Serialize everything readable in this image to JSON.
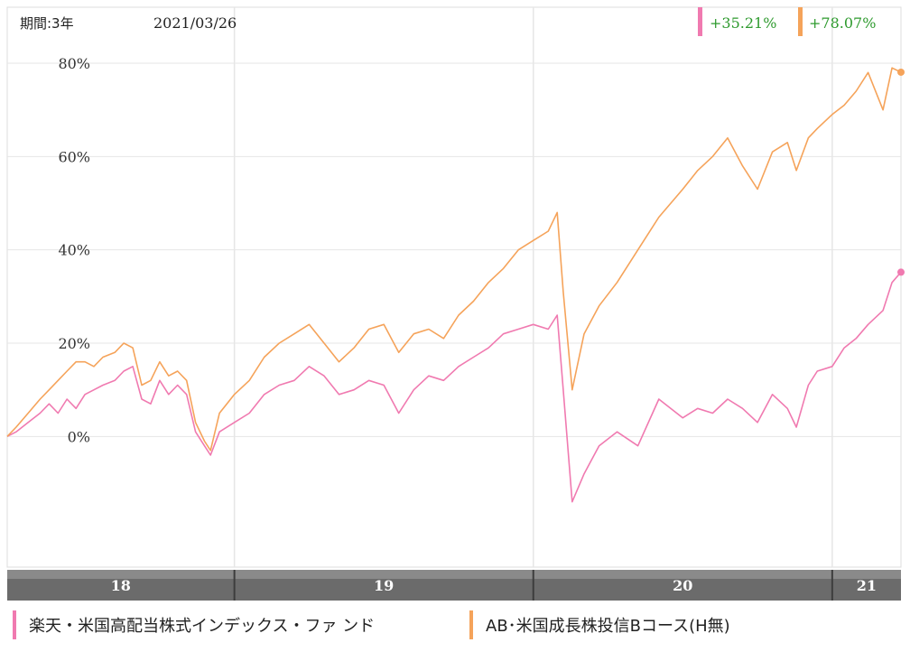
{
  "header": {
    "period_label": "期間:3年",
    "date_label": "2021/03/26"
  },
  "badges": [
    {
      "text": "+35.21%",
      "color": "#f07ab0"
    },
    {
      "text": "+78.07%",
      "color": "#f5a35a"
    }
  ],
  "legend": [
    {
      "label": "楽天・米国高配当株式インデックス・ファ ンド",
      "color": "#f07ab0"
    },
    {
      "label": "AB･米国成長株投信Bコース(H無)",
      "color": "#f5a35a"
    }
  ],
  "colors": {
    "badge_text": "#2e9a2e",
    "axis_band": "#6b6b6b",
    "grid": "#e6e6e6"
  },
  "chart_data": {
    "type": "line",
    "x_range": [
      2018.24,
      2021.23
    ],
    "ylim": [
      -28,
      92
    ],
    "y_ticks": [
      {
        "value": 0,
        "label": "0%"
      },
      {
        "value": 20,
        "label": "20%"
      },
      {
        "value": 40,
        "label": "40%"
      },
      {
        "value": 60,
        "label": "60%"
      },
      {
        "value": 80,
        "label": "80%"
      }
    ],
    "x_ticks": [
      {
        "value": 2018.24,
        "label": ""
      },
      {
        "value": 2019.0,
        "label": "18"
      },
      {
        "value": 2020.0,
        "label": "19"
      },
      {
        "value": 2021.0,
        "label": "20"
      },
      {
        "value": 2021.23,
        "label": "21"
      }
    ],
    "x_labels": [
      {
        "from": 2018.24,
        "to": 2019.0,
        "label": "18"
      },
      {
        "from": 2019.0,
        "to": 2020.0,
        "label": "19"
      },
      {
        "from": 2020.0,
        "to": 2021.0,
        "label": "20"
      },
      {
        "from": 2021.0,
        "to": 2021.23,
        "label": "21"
      }
    ],
    "series": [
      {
        "name": "楽天・米国高配当株式インデックス・ファ ンド",
        "color": "#f07ab0",
        "points": [
          [
            2018.24,
            0
          ],
          [
            2018.27,
            1
          ],
          [
            2018.31,
            3
          ],
          [
            2018.35,
            5
          ],
          [
            2018.38,
            7
          ],
          [
            2018.41,
            5
          ],
          [
            2018.44,
            8
          ],
          [
            2018.47,
            6
          ],
          [
            2018.5,
            9
          ],
          [
            2018.53,
            10
          ],
          [
            2018.56,
            11
          ],
          [
            2018.6,
            12
          ],
          [
            2018.63,
            14
          ],
          [
            2018.66,
            15
          ],
          [
            2018.69,
            8
          ],
          [
            2018.72,
            7
          ],
          [
            2018.75,
            12
          ],
          [
            2018.78,
            9
          ],
          [
            2018.81,
            11
          ],
          [
            2018.84,
            9
          ],
          [
            2018.87,
            1
          ],
          [
            2018.9,
            -2
          ],
          [
            2018.92,
            -4
          ],
          [
            2018.95,
            1
          ],
          [
            2019.0,
            3
          ],
          [
            2019.05,
            5
          ],
          [
            2019.1,
            9
          ],
          [
            2019.15,
            11
          ],
          [
            2019.2,
            12
          ],
          [
            2019.25,
            15
          ],
          [
            2019.3,
            13
          ],
          [
            2019.35,
            9
          ],
          [
            2019.4,
            10
          ],
          [
            2019.45,
            12
          ],
          [
            2019.5,
            11
          ],
          [
            2019.55,
            5
          ],
          [
            2019.6,
            10
          ],
          [
            2019.65,
            13
          ],
          [
            2019.7,
            12
          ],
          [
            2019.75,
            15
          ],
          [
            2019.8,
            17
          ],
          [
            2019.85,
            19
          ],
          [
            2019.9,
            22
          ],
          [
            2019.95,
            23
          ],
          [
            2020.0,
            24
          ],
          [
            2020.05,
            23
          ],
          [
            2020.08,
            26
          ],
          [
            2020.1,
            10
          ],
          [
            2020.13,
            -14
          ],
          [
            2020.17,
            -8
          ],
          [
            2020.22,
            -2
          ],
          [
            2020.28,
            1
          ],
          [
            2020.35,
            -2
          ],
          [
            2020.42,
            8
          ],
          [
            2020.5,
            4
          ],
          [
            2020.55,
            6
          ],
          [
            2020.6,
            5
          ],
          [
            2020.65,
            8
          ],
          [
            2020.7,
            6
          ],
          [
            2020.75,
            3
          ],
          [
            2020.8,
            9
          ],
          [
            2020.85,
            6
          ],
          [
            2020.88,
            2
          ],
          [
            2020.92,
            11
          ],
          [
            2020.95,
            14
          ],
          [
            2021.0,
            15
          ],
          [
            2021.04,
            19
          ],
          [
            2021.08,
            21
          ],
          [
            2021.12,
            24
          ],
          [
            2021.17,
            27
          ],
          [
            2021.2,
            33
          ],
          [
            2021.23,
            35.21
          ]
        ]
      },
      {
        "name": "AB･米国成長株投信Bコース(H無)",
        "color": "#f5a35a",
        "points": [
          [
            2018.24,
            0
          ],
          [
            2018.27,
            2
          ],
          [
            2018.31,
            5
          ],
          [
            2018.35,
            8
          ],
          [
            2018.38,
            10
          ],
          [
            2018.41,
            12
          ],
          [
            2018.44,
            14
          ],
          [
            2018.47,
            16
          ],
          [
            2018.5,
            16
          ],
          [
            2018.53,
            15
          ],
          [
            2018.56,
            17
          ],
          [
            2018.6,
            18
          ],
          [
            2018.63,
            20
          ],
          [
            2018.66,
            19
          ],
          [
            2018.69,
            11
          ],
          [
            2018.72,
            12
          ],
          [
            2018.75,
            16
          ],
          [
            2018.78,
            13
          ],
          [
            2018.81,
            14
          ],
          [
            2018.84,
            12
          ],
          [
            2018.87,
            3
          ],
          [
            2018.9,
            -1
          ],
          [
            2018.92,
            -3
          ],
          [
            2018.95,
            5
          ],
          [
            2019.0,
            9
          ],
          [
            2019.05,
            12
          ],
          [
            2019.1,
            17
          ],
          [
            2019.15,
            20
          ],
          [
            2019.2,
            22
          ],
          [
            2019.25,
            24
          ],
          [
            2019.3,
            20
          ],
          [
            2019.35,
            16
          ],
          [
            2019.4,
            19
          ],
          [
            2019.45,
            23
          ],
          [
            2019.5,
            24
          ],
          [
            2019.55,
            18
          ],
          [
            2019.6,
            22
          ],
          [
            2019.65,
            23
          ],
          [
            2019.7,
            21
          ],
          [
            2019.75,
            26
          ],
          [
            2019.8,
            29
          ],
          [
            2019.85,
            33
          ],
          [
            2019.9,
            36
          ],
          [
            2019.95,
            40
          ],
          [
            2020.0,
            42
          ],
          [
            2020.05,
            44
          ],
          [
            2020.08,
            48
          ],
          [
            2020.1,
            31
          ],
          [
            2020.13,
            10
          ],
          [
            2020.17,
            22
          ],
          [
            2020.22,
            28
          ],
          [
            2020.28,
            33
          ],
          [
            2020.35,
            40
          ],
          [
            2020.42,
            47
          ],
          [
            2020.5,
            53
          ],
          [
            2020.55,
            57
          ],
          [
            2020.6,
            60
          ],
          [
            2020.65,
            64
          ],
          [
            2020.7,
            58
          ],
          [
            2020.75,
            53
          ],
          [
            2020.8,
            61
          ],
          [
            2020.85,
            63
          ],
          [
            2020.88,
            57
          ],
          [
            2020.92,
            64
          ],
          [
            2020.95,
            66
          ],
          [
            2021.0,
            69
          ],
          [
            2021.04,
            71
          ],
          [
            2021.08,
            74
          ],
          [
            2021.12,
            78
          ],
          [
            2021.17,
            70
          ],
          [
            2021.2,
            79
          ],
          [
            2021.23,
            78.07
          ]
        ]
      }
    ]
  }
}
